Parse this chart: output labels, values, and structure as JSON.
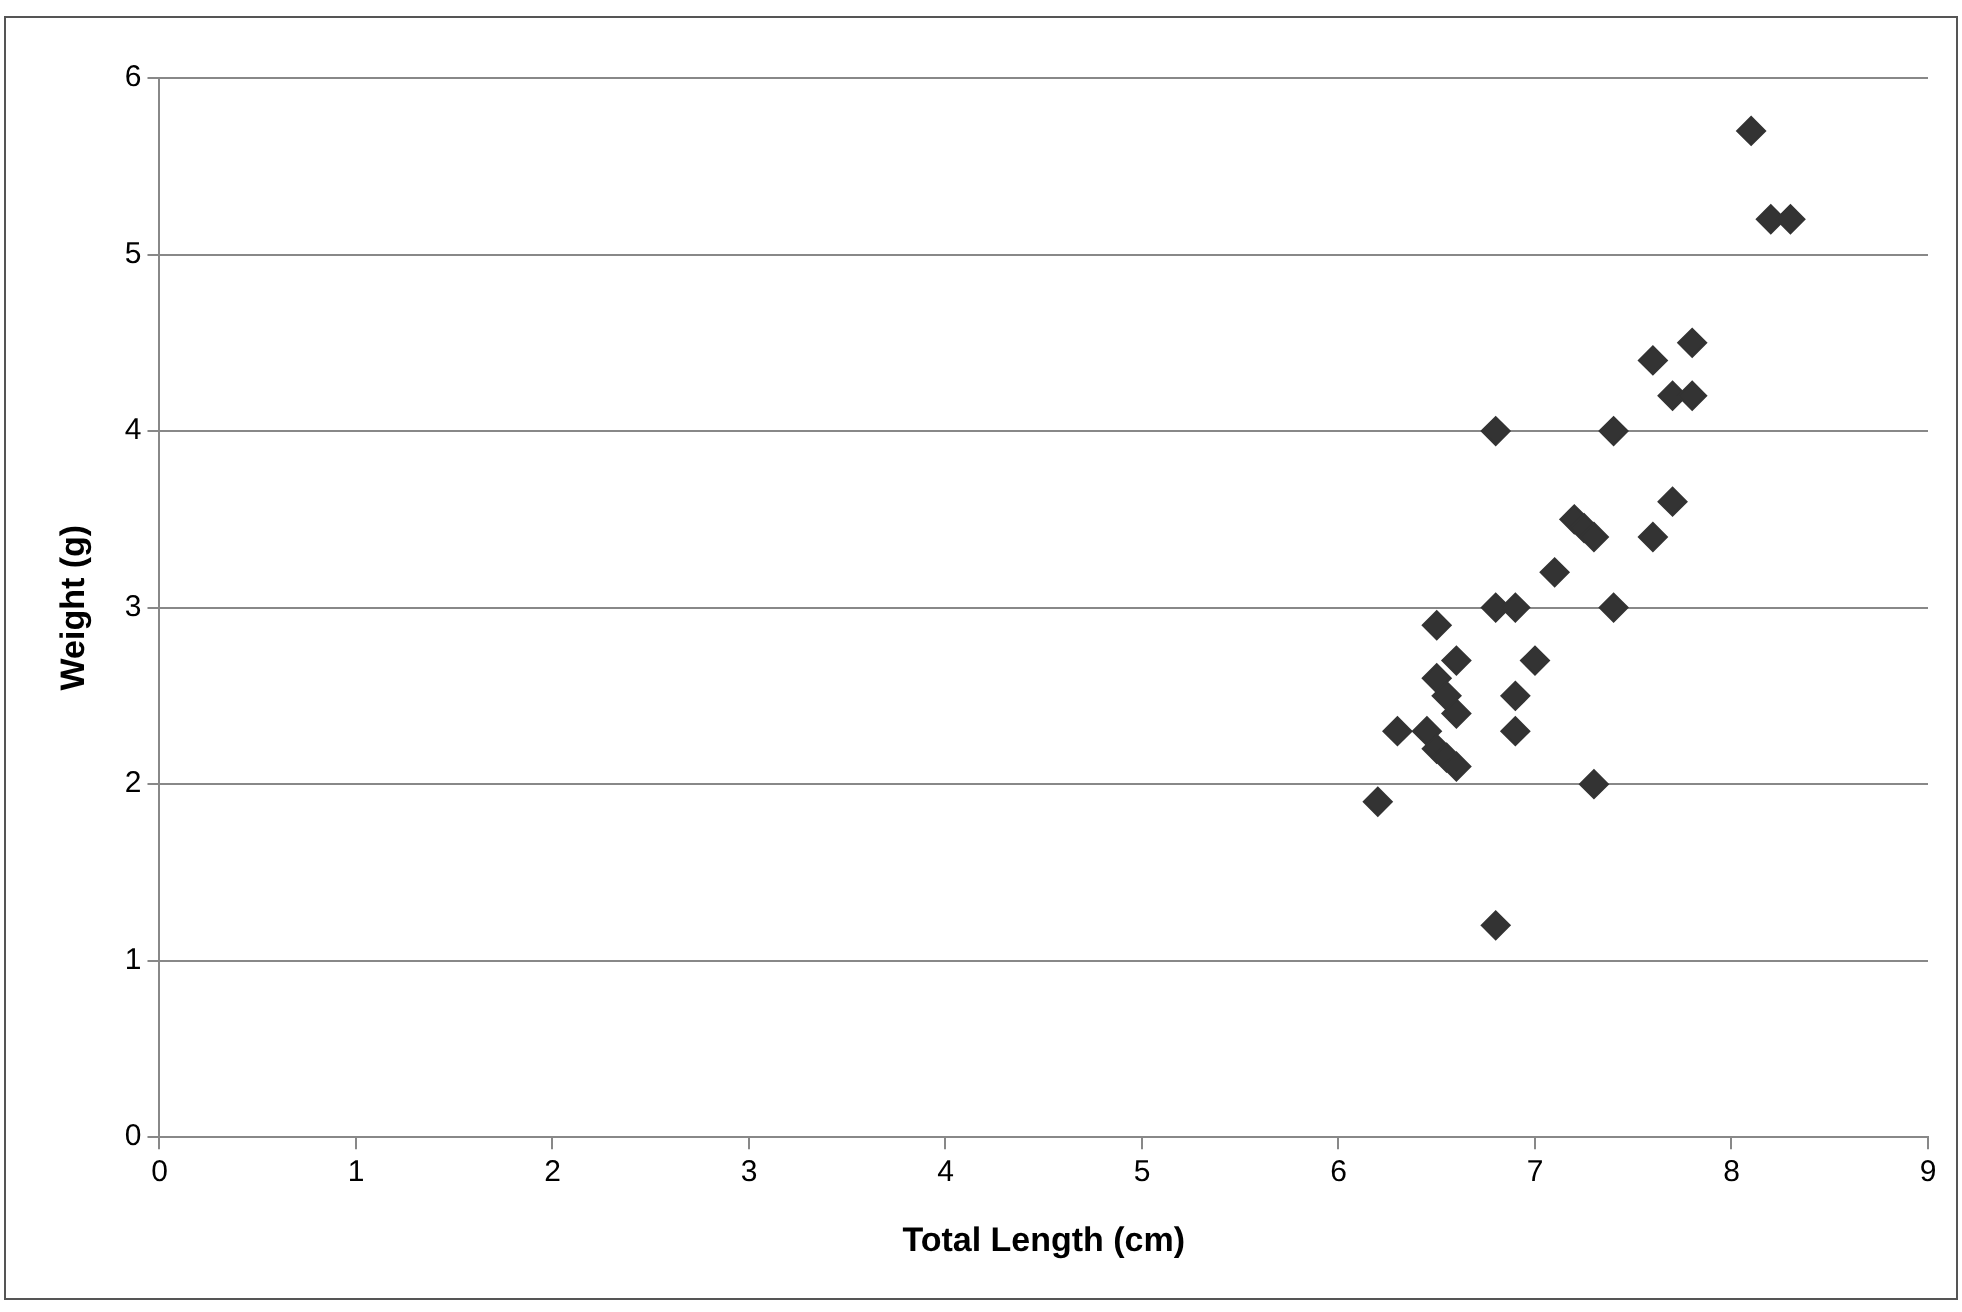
{
  "chart_data": {
    "type": "scatter",
    "xlabel": "Total Length (cm)",
    "ylabel": "Weight (g)",
    "marker": "diamond",
    "grid": "y",
    "xlim": [
      0,
      9
    ],
    "xticks": [
      0,
      1,
      2,
      3,
      4,
      5,
      6,
      7,
      8,
      9
    ],
    "ylim": [
      0,
      6
    ],
    "yticks": [
      0,
      1,
      2,
      3,
      4,
      5,
      6
    ],
    "series": [
      {
        "color": "#333333",
        "x": [
          6.2,
          6.3,
          6.45,
          6.5,
          6.5,
          6.55,
          6.6,
          6.6,
          6.5,
          6.55,
          6.6,
          6.8,
          6.8,
          6.8,
          6.9,
          6.9,
          6.9,
          7.0,
          7.1,
          7.2,
          7.25,
          7.3,
          7.3,
          7.4,
          7.4,
          7.6,
          7.6,
          7.7,
          7.7,
          7.8,
          7.8,
          8.1,
          8.2,
          8.3
        ],
        "values": [
          1.9,
          2.3,
          2.3,
          2.9,
          2.6,
          2.5,
          2.7,
          2.4,
          2.2,
          2.15,
          2.1,
          1.2,
          3.0,
          4.0,
          3.0,
          2.5,
          2.3,
          2.7,
          3.2,
          3.5,
          3.45,
          3.4,
          2.0,
          3.0,
          4.0,
          3.4,
          4.4,
          3.6,
          4.2,
          4.2,
          4.5,
          5.7,
          5.2,
          5.2
        ]
      }
    ]
  }
}
